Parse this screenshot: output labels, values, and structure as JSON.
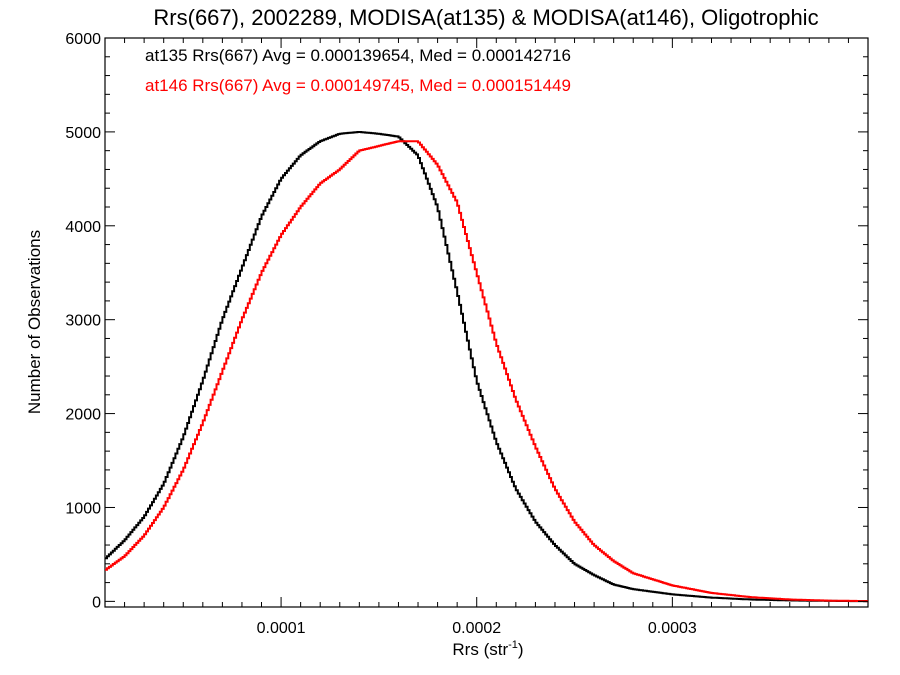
{
  "chart_data": {
    "type": "line",
    "subtype": "step-histogram",
    "title": "Rrs(667), 2002289, MODISA(at135) & MODISA(at146), Oligotrophic",
    "xlabel_main": "Rrs (str",
    "xlabel_sup": "-1",
    "xlabel_end": ")",
    "ylabel": "Number of Observations",
    "xlim": [
      1e-05,
      0.0004
    ],
    "ylim": [
      -60,
      6000
    ],
    "x_ticks": [
      0.0001,
      0.0002,
      0.0003
    ],
    "x_tick_labels": [
      "0.0001",
      "0.0002",
      "0.0003"
    ],
    "y_ticks": [
      0,
      1000,
      2000,
      3000,
      4000,
      5000,
      6000
    ],
    "y_tick_labels": [
      "0",
      "1000",
      "2000",
      "3000",
      "4000",
      "5000",
      "6000"
    ],
    "annotations": [
      {
        "text": "at135 Rrs(667) Avg = 0.000139654, Med = 0.000142716",
        "color": "#000000"
      },
      {
        "text": "at146 Rrs(667) Avg = 0.000149745, Med = 0.000151449",
        "color": "#ff0000"
      }
    ],
    "series": [
      {
        "color": "#000000",
        "x": [
          1e-05,
          2e-05,
          3e-05,
          4e-05,
          5e-05,
          6e-05,
          7e-05,
          8e-05,
          9e-05,
          0.0001,
          0.00011,
          0.00012,
          0.00013,
          0.00014,
          0.00015,
          0.00016,
          0.00017,
          0.00018,
          0.00019,
          0.0002,
          0.00021,
          0.00022,
          0.00023,
          0.00024,
          0.00025,
          0.00026,
          0.00027,
          0.00028,
          0.0003,
          0.00032,
          0.00034,
          0.00036,
          0.00038,
          0.0004
        ],
        "y": [
          450,
          650,
          900,
          1250,
          1750,
          2350,
          3000,
          3550,
          4100,
          4500,
          4750,
          4900,
          4980,
          5000,
          4980,
          4950,
          4750,
          4200,
          3300,
          2350,
          1700,
          1200,
          850,
          600,
          400,
          280,
          180,
          130,
          75,
          40,
          20,
          10,
          5,
          2
        ]
      },
      {
        "color": "#ff0000",
        "x": [
          1e-05,
          2e-05,
          3e-05,
          4e-05,
          5e-05,
          6e-05,
          7e-05,
          8e-05,
          9e-05,
          0.0001,
          0.00011,
          0.00012,
          0.00013,
          0.00014,
          0.00015,
          0.00016,
          0.00017,
          0.00018,
          0.00019,
          0.0002,
          0.00021,
          0.00022,
          0.00023,
          0.00024,
          0.00025,
          0.00026,
          0.00027,
          0.00028,
          0.0003,
          0.00032,
          0.00034,
          0.00036,
          0.00038,
          0.0004
        ],
        "y": [
          330,
          480,
          700,
          1000,
          1400,
          1900,
          2450,
          3000,
          3500,
          3900,
          4200,
          4450,
          4600,
          4800,
          4850,
          4900,
          4900,
          4650,
          4250,
          3500,
          2750,
          2150,
          1650,
          1200,
          850,
          600,
          430,
          300,
          170,
          90,
          45,
          20,
          8,
          3
        ]
      }
    ]
  }
}
